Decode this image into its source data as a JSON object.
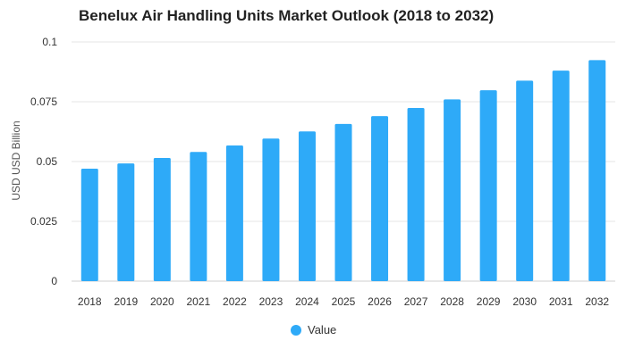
{
  "chart_data": {
    "type": "bar",
    "title": "Benelux Air Handling Units Market Outlook (2018 to 2032)",
    "xlabel": "",
    "ylabel": "USD USD Billion",
    "categories": [
      "2018",
      "2019",
      "2020",
      "2021",
      "2022",
      "2023",
      "2024",
      "2025",
      "2026",
      "2027",
      "2028",
      "2029",
      "2030",
      "2031",
      "2032"
    ],
    "series": [
      {
        "name": "Value",
        "values": [
          0.047,
          0.0492,
          0.0515,
          0.054,
          0.0567,
          0.0596,
          0.0626,
          0.0657,
          0.069,
          0.0724,
          0.076,
          0.0798,
          0.0838,
          0.088,
          0.0924
        ]
      }
    ],
    "ylim": [
      0,
      0.1
    ],
    "yticks": [
      "0",
      "0.025",
      "0.05",
      "0.075",
      "0.1"
    ],
    "ytick_values": [
      0,
      0.025,
      0.05,
      0.075,
      0.1
    ],
    "grid": true,
    "legend_position": "bottom-center",
    "colors": {
      "bar": "#2eaaf8",
      "grid": "#e6e6e6",
      "axis_text": "#333333"
    }
  }
}
